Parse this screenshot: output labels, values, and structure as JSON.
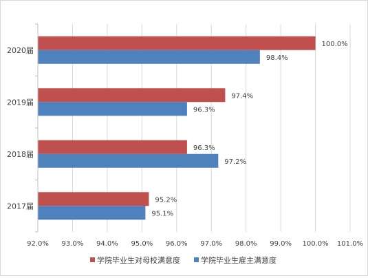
{
  "chart_data": {
    "type": "bar",
    "orientation": "horizontal",
    "categories": [
      "2020届",
      "2019届",
      "2018届",
      "2017届"
    ],
    "series": [
      {
        "name": "学院毕业生对母校满意度",
        "color": "#c0504d",
        "values": [
          100.0,
          97.4,
          96.3,
          95.2
        ],
        "labels": [
          "100.0%",
          "97.4%",
          "96.3%",
          "95.2%"
        ]
      },
      {
        "name": "学院毕业生雇主满意度",
        "color": "#4f81bd",
        "values": [
          98.4,
          96.3,
          97.2,
          95.1
        ],
        "labels": [
          "98.4%",
          "96.3%",
          "97.2%",
          "95.1%"
        ]
      }
    ],
    "xlim": [
      92.0,
      101.0
    ],
    "xticks": [
      92.0,
      93.0,
      94.0,
      95.0,
      96.0,
      97.0,
      98.0,
      99.0,
      100.0,
      101.0
    ],
    "xtick_labels": [
      "92.0%",
      "93.0%",
      "94.0%",
      "95.0%",
      "96.0%",
      "97.0%",
      "98.0%",
      "99.0%",
      "100.0%",
      "101.0%"
    ],
    "grid": "vertical",
    "legend_position": "bottom"
  }
}
